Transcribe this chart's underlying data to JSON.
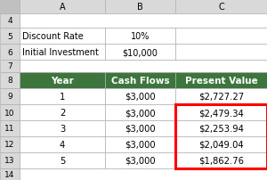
{
  "header_row": [
    "Year",
    "Cash Flows",
    "Present Value"
  ],
  "data_rows": [
    [
      "9",
      "1",
      "$3,000",
      "$2,727.27"
    ],
    [
      "10",
      "2",
      "$3,000",
      "$2,479.34"
    ],
    [
      "11",
      "3",
      "$3,000",
      "$2,253.94"
    ],
    [
      "12",
      "4",
      "$3,000",
      "$2,049.04"
    ],
    [
      "13",
      "5",
      "$3,000",
      "$1,862.76"
    ]
  ],
  "header_bg": "#3C763C",
  "header_fg": "#FFFFFF",
  "info_bg": "#FFFFFF",
  "data_bg": "#FFFFFF",
  "row_num_bg": "#D9D9D9",
  "col_header_bg": "#D9D9D9",
  "col_header_fg": "#000000",
  "top_left_bg": "#C0C0C0",
  "highlight_border": "#FF0000",
  "grid_color": "#B0B0B0"
}
